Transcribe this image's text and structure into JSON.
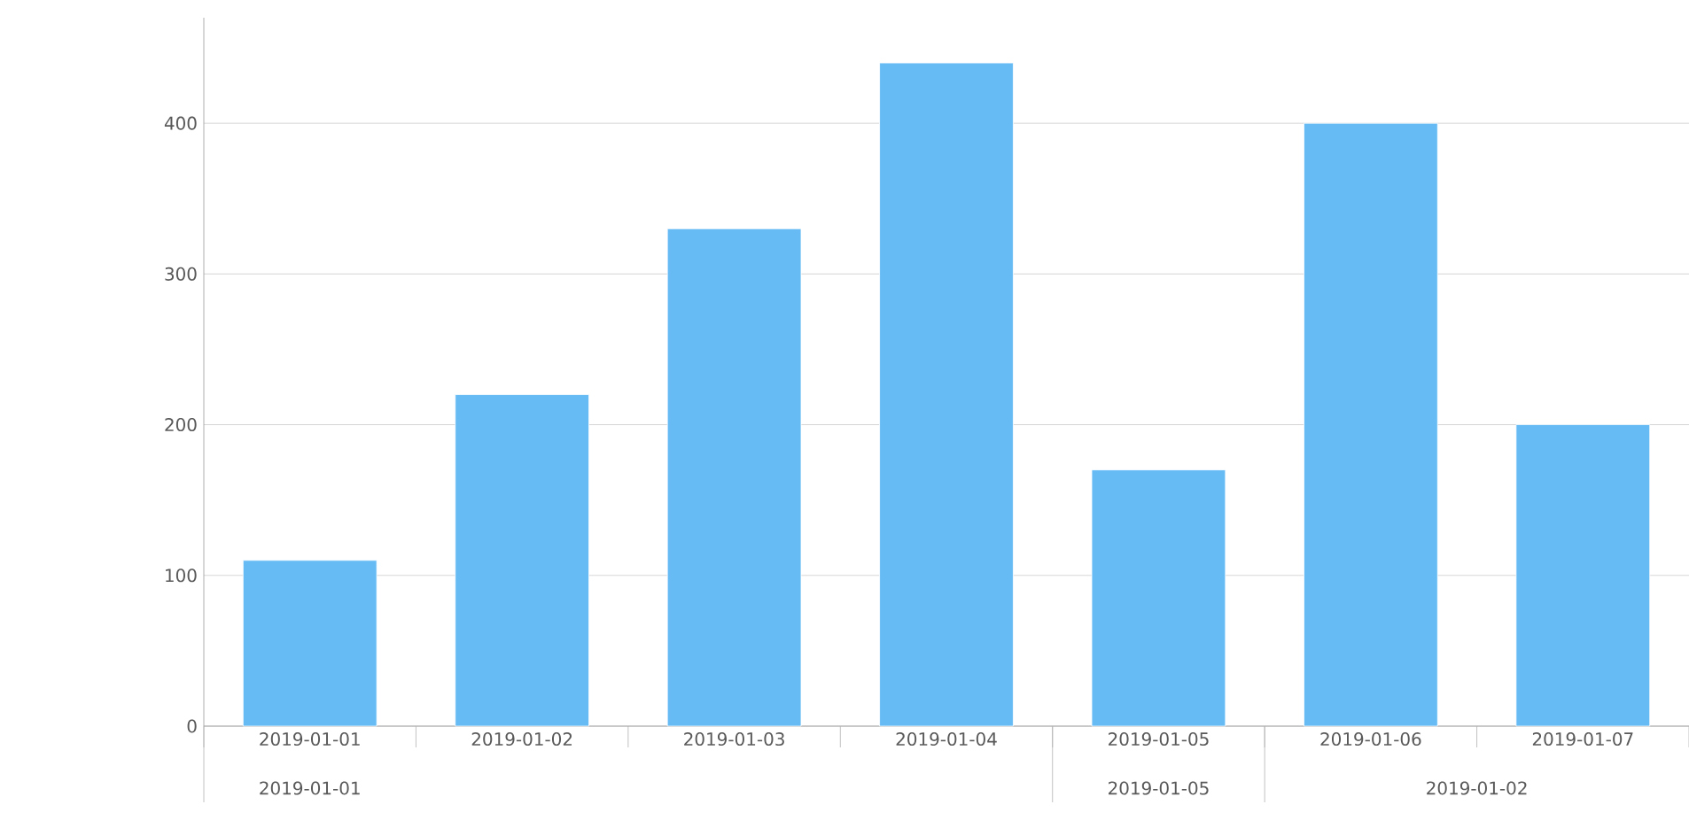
{
  "chart_data": {
    "type": "bar",
    "categories": [
      "2019-01-01",
      "2019-01-02",
      "2019-01-03",
      "2019-01-04",
      "2019-01-05",
      "2019-01-06",
      "2019-01-07"
    ],
    "values": [
      110,
      220,
      330,
      440,
      170,
      400,
      200
    ],
    "color": "#66bbf5",
    "ylim": [
      0,
      470
    ],
    "yticks": [
      0,
      100,
      200,
      300,
      400
    ],
    "grid": "y",
    "annotations": [
      "2019-01-01",
      "2019-01-05",
      "2019-01-02"
    ]
  }
}
